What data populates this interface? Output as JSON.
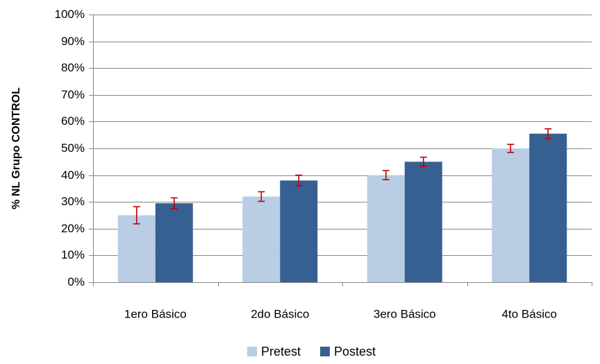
{
  "chart_data": {
    "type": "bar",
    "categories": [
      "1ero Básico",
      "2do Básico",
      "3ero Básico",
      "4to Básico"
    ],
    "series": [
      {
        "name": "Pretest",
        "color": "#b9cde5",
        "values": [
          25,
          32,
          40,
          50
        ],
        "error": [
          3.2,
          1.8,
          1.7,
          1.5
        ]
      },
      {
        "name": "Postest",
        "color": "#376092",
        "values": [
          29.5,
          38,
          45,
          55.5
        ],
        "error": [
          2.0,
          2.0,
          1.7,
          1.8
        ]
      }
    ],
    "error_bar_color": "#c00000",
    "ylabel": "% NL Grupo CONTROL",
    "ylim": [
      0,
      100
    ],
    "y_ticks": [
      "0%",
      "10%",
      "20%",
      "30%",
      "40%",
      "50%",
      "60%",
      "70%",
      "80%",
      "90%",
      "100%"
    ],
    "grid": true,
    "legend_position": "bottom"
  }
}
